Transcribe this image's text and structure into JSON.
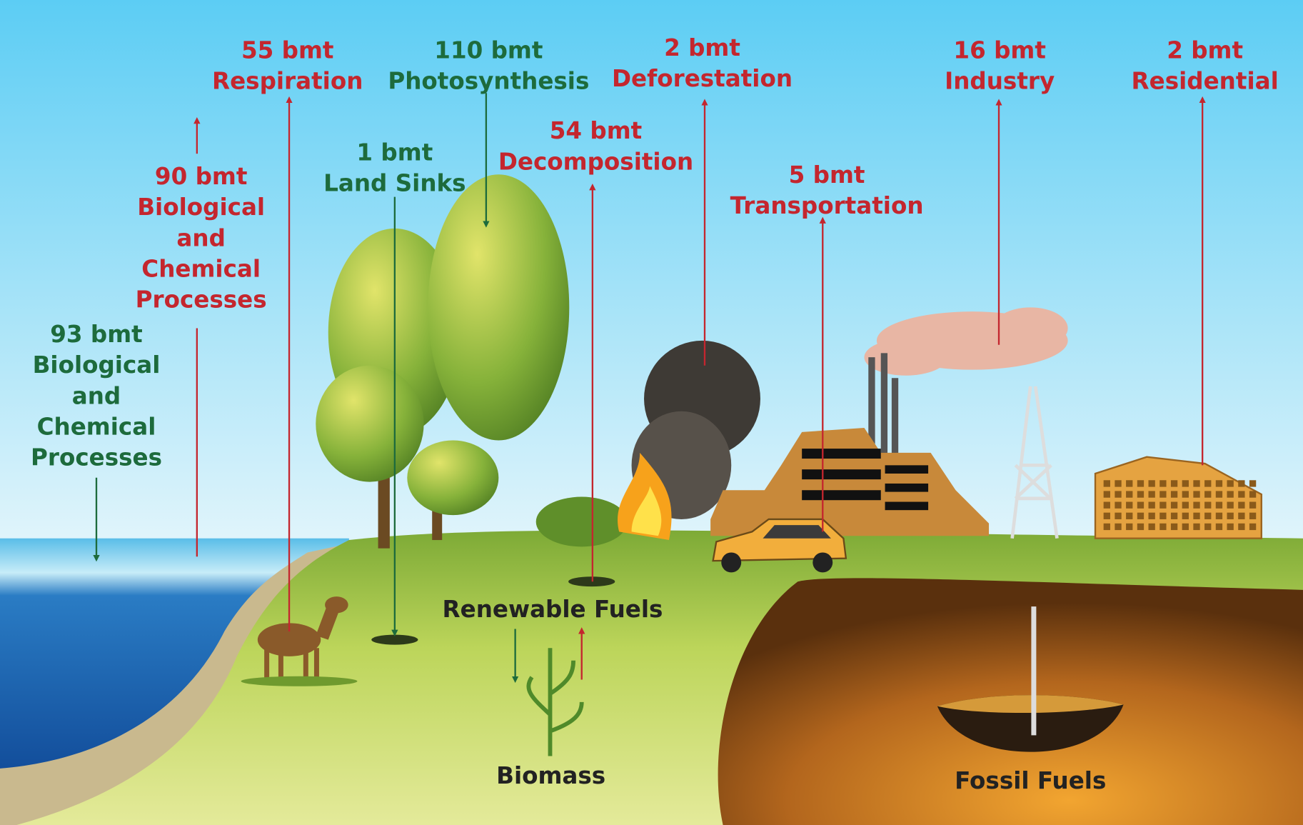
{
  "flows": [
    {
      "amount": "55 bmt",
      "label": "Respiration"
    },
    {
      "amount": "110 bmt",
      "label": "Photosynthesis"
    },
    {
      "amount": "2 bmt",
      "label": "Deforestation"
    },
    {
      "amount": "16 bmt",
      "label": "Industry"
    },
    {
      "amount": "2 bmt",
      "label": "Residential"
    },
    {
      "amount": "54 bmt",
      "label": "Decomposition"
    },
    {
      "amount": "5 bmt",
      "label": "Transportation"
    },
    {
      "amount": "1 bmt",
      "label": "Land Sinks"
    },
    {
      "amount": "90 bmt",
      "lines": [
        "Biological",
        "and",
        "Chemical",
        "Processes"
      ]
    },
    {
      "amount": "93 bmt",
      "lines": [
        "Biological",
        "and",
        "Chemical",
        "Processes"
      ]
    }
  ],
  "reservoirs": [
    "Renewable Fuels",
    "Biomass",
    "Fossil Fuels"
  ]
}
